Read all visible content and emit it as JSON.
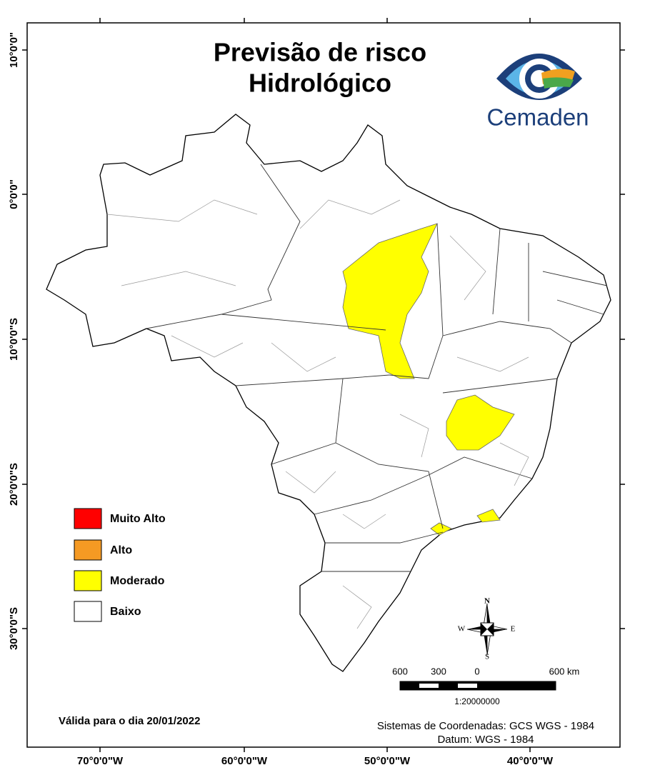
{
  "header": {
    "title_lines": [
      "Previsão de risco",
      "Hidrológico"
    ],
    "logo_text": "Cemaden"
  },
  "legend": {
    "items": [
      {
        "label": "Muito Alto",
        "color": "#ff0000"
      },
      {
        "label": "Alto",
        "color": "#f59a23"
      },
      {
        "label": "Moderado",
        "color": "#ffff00"
      },
      {
        "label": "Baixo",
        "color": "#ffffff"
      }
    ]
  },
  "axes": {
    "longitude_labels": [
      "70°0'0\"W",
      "60°0'0\"W",
      "50°0'0\"W",
      "40°0'0\"W"
    ],
    "latitude_labels": [
      "10°0'0\"",
      "0°0'0\"",
      "10°0'0\"S",
      "20°0'0\"S",
      "30°0'0\"S"
    ]
  },
  "compass": {
    "north": "N",
    "south": "S",
    "east": "E",
    "west": "W"
  },
  "scale_bar": {
    "labels": [
      "600",
      "300",
      "0",
      "600 km"
    ],
    "ratio": "1:20000000"
  },
  "footer": {
    "valid_date": "Válida para o dia 20/01/2022",
    "coordinate_system": "Sistemas de Coordenadas: GCS WGS - 1984",
    "datum": "Datum: WGS - 1984"
  }
}
